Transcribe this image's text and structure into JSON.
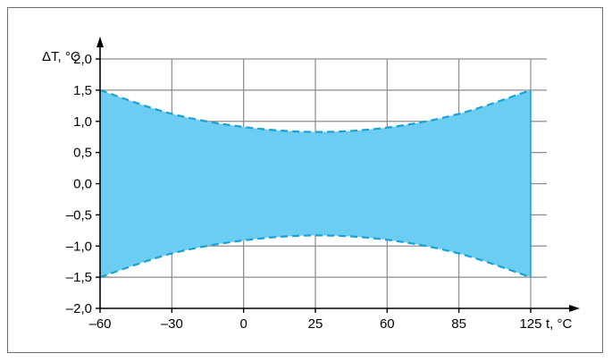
{
  "chart_data": {
    "type": "area",
    "title": "",
    "xlabel": "t, °C",
    "ylabel": "ΔT, °C",
    "x_categories": [
      "–60",
      "–30",
      "0",
      "25",
      "60",
      "85",
      "125"
    ],
    "x": [
      -60,
      -30,
      0,
      25,
      60,
      85,
      125
    ],
    "y_ticks": [
      "2,0",
      "1,5",
      "1,0",
      "0,5",
      "0,0",
      "–0,5",
      "–1,0",
      "–1,5",
      "–2,0"
    ],
    "ylim": [
      -2.0,
      2.0
    ],
    "grid": true,
    "series": [
      {
        "values": [
          1.5,
          1.12,
          0.91,
          0.83,
          0.9,
          1.12,
          1.5
        ]
      },
      {
        "values": [
          -1.5,
          -1.12,
          -0.91,
          -0.83,
          -0.9,
          -1.12,
          -1.5
        ]
      }
    ],
    "colors": {
      "fill": "#6ccdf3",
      "edge": "#1aa0d8",
      "grid": "#8c8c8c",
      "axis": "#000000"
    },
    "edge_style": "dashed"
  }
}
